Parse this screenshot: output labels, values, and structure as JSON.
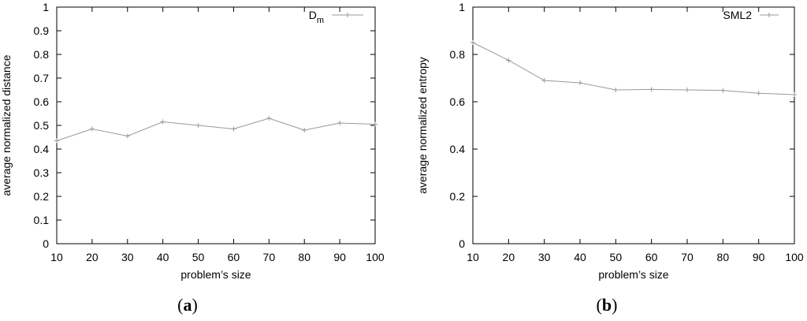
{
  "chart_data": [
    {
      "type": "line",
      "panel_label": "a",
      "xlabel": "problem’s size",
      "ylabel": "average normalized distance",
      "xlim": [
        10,
        100
      ],
      "ylim": [
        0,
        1
      ],
      "x_ticks": [
        10,
        20,
        30,
        40,
        50,
        60,
        70,
        80,
        90,
        100
      ],
      "y_ticks": [
        "0",
        "0.1",
        "0.2",
        "0.3",
        "0.4",
        "0.5",
        "0.6",
        "0.7",
        "0.8",
        "0.9",
        "1"
      ],
      "legend_position": "top-right",
      "grid": false,
      "series": [
        {
          "name": "D",
          "name_subscript": "m",
          "color": "#999999",
          "x": [
            10,
            20,
            30,
            40,
            50,
            60,
            70,
            80,
            90,
            100
          ],
          "values": [
            0.435,
            0.485,
            0.455,
            0.515,
            0.5,
            0.485,
            0.53,
            0.48,
            0.51,
            0.505
          ]
        }
      ]
    },
    {
      "type": "line",
      "panel_label": "b",
      "xlabel": "problem’s size",
      "ylabel": "average normalized entropy",
      "xlim": [
        10,
        100
      ],
      "ylim": [
        0,
        1
      ],
      "x_ticks": [
        10,
        20,
        30,
        40,
        50,
        60,
        70,
        80,
        90,
        100
      ],
      "y_ticks": [
        "0",
        "0.2",
        "0.4",
        "0.6",
        "0.8",
        "1"
      ],
      "legend_position": "top-right",
      "grid": false,
      "series": [
        {
          "name": "SML2",
          "color": "#999999",
          "x": [
            10,
            20,
            30,
            40,
            50,
            60,
            70,
            80,
            90,
            100
          ],
          "values": [
            0.85,
            0.775,
            0.69,
            0.68,
            0.65,
            0.652,
            0.65,
            0.648,
            0.636,
            0.63
          ]
        }
      ]
    }
  ]
}
